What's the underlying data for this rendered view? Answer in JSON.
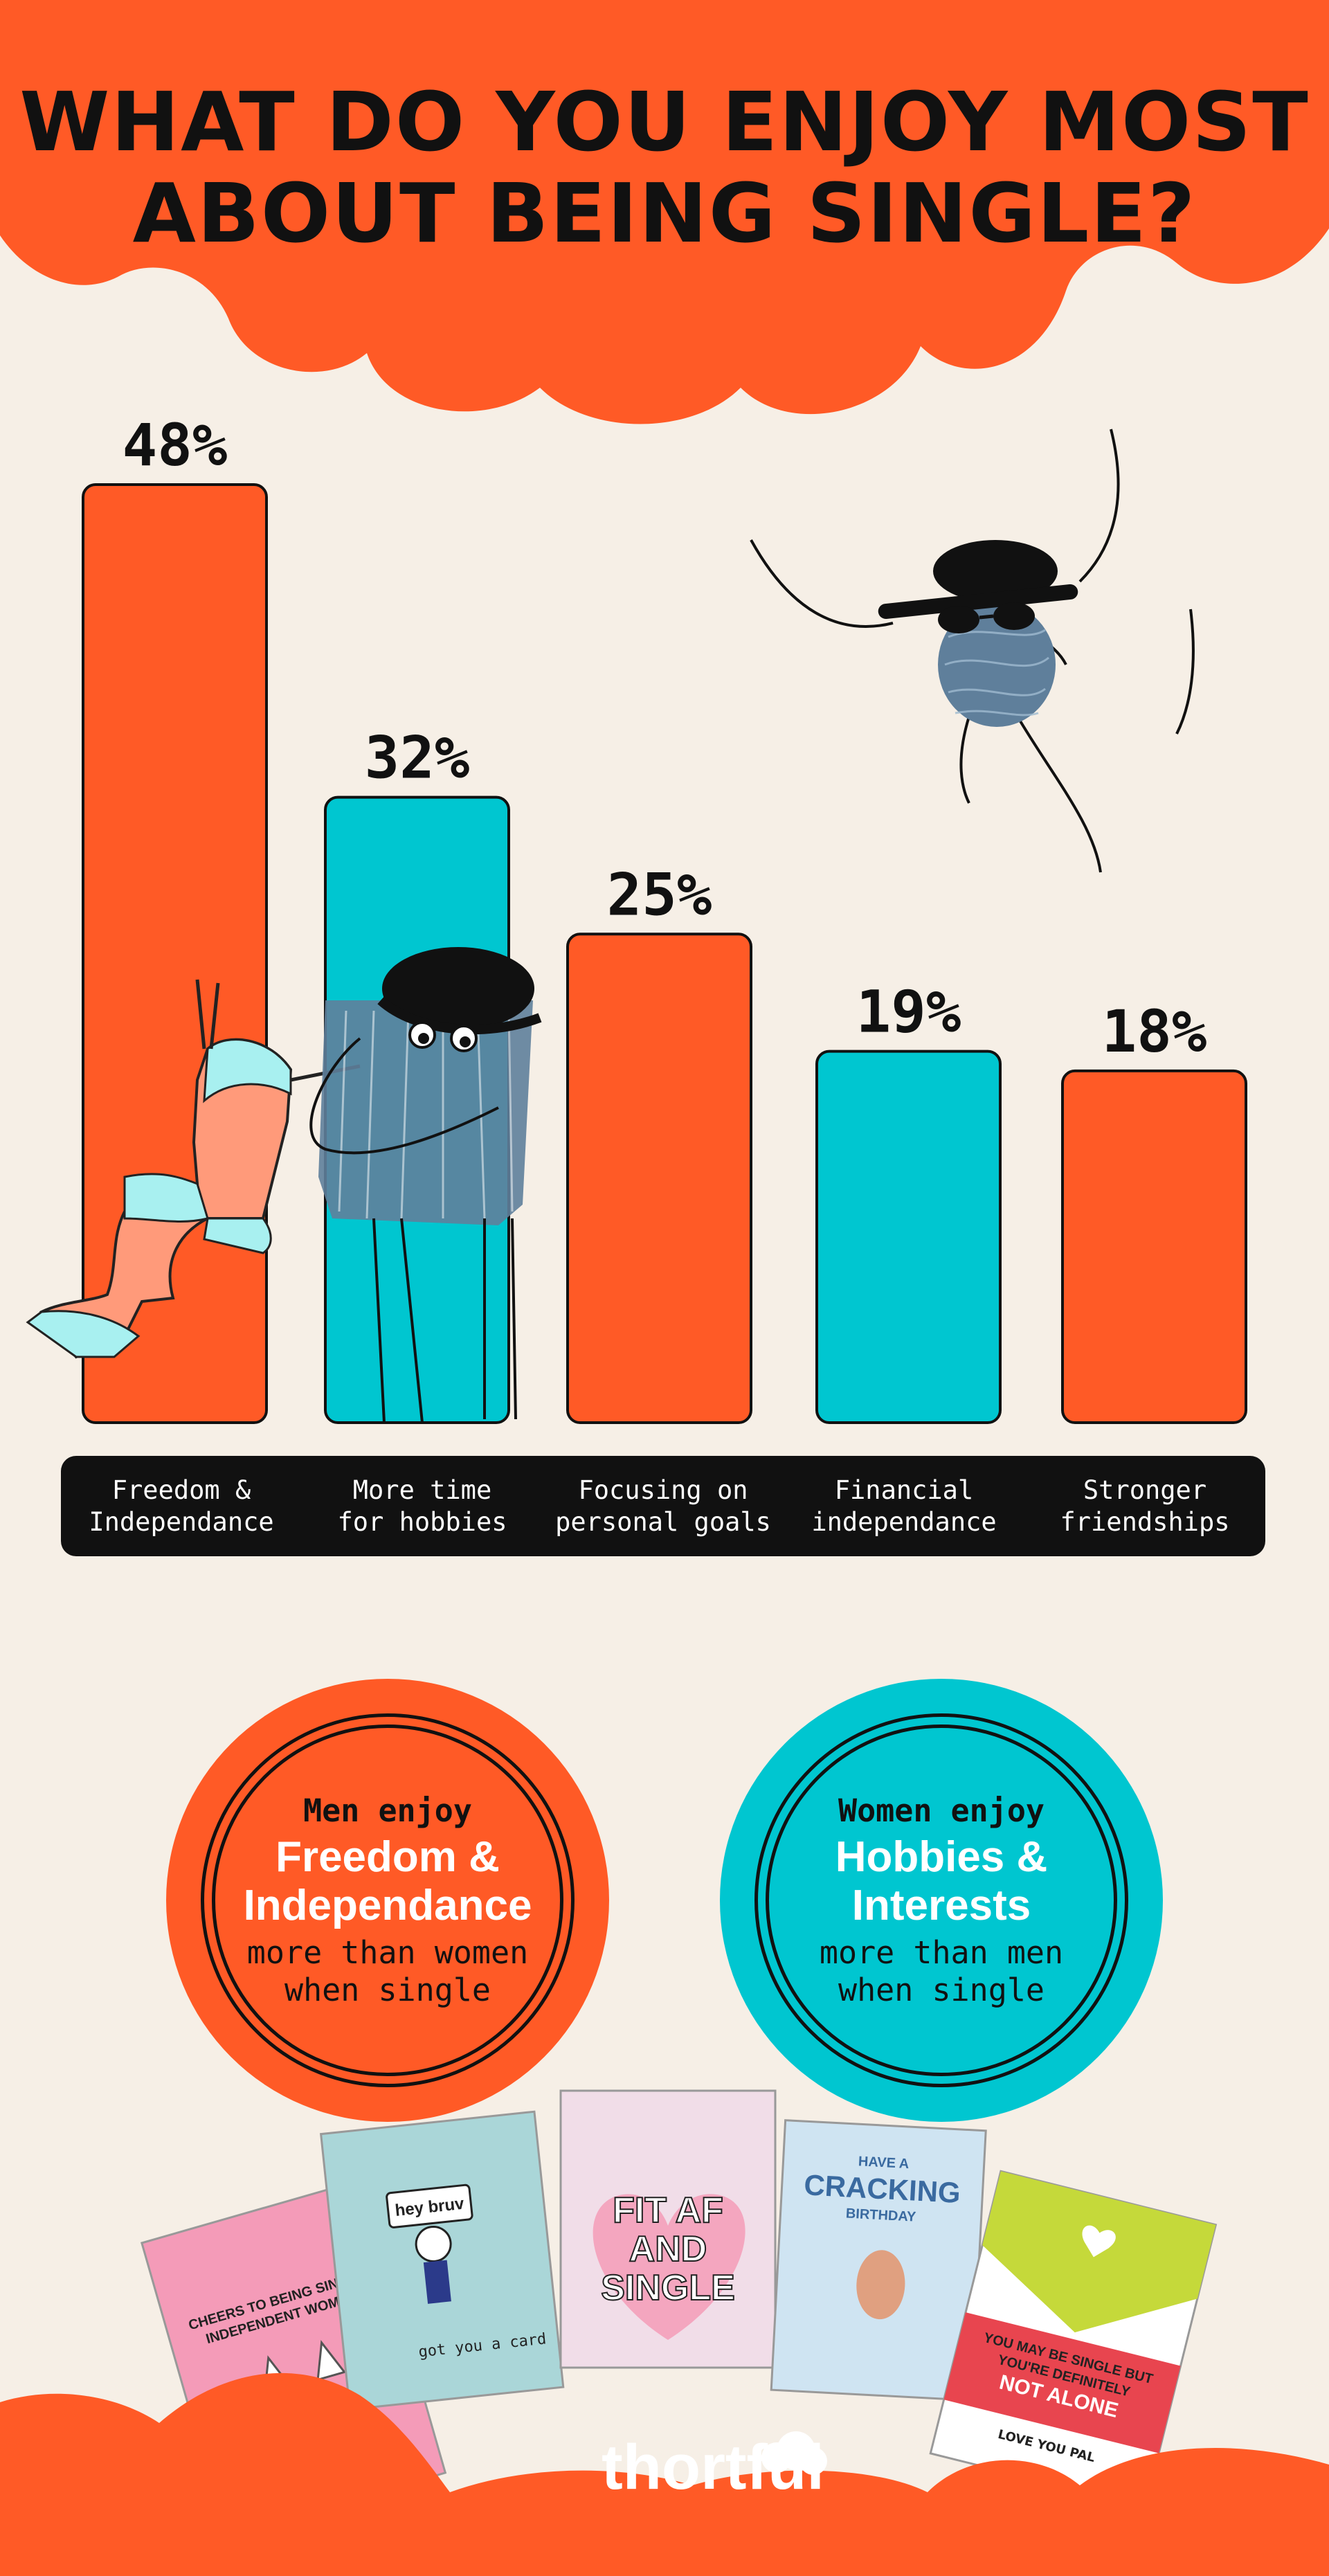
{
  "title": "WHAT DO YOU ENJOY MOST\nABOUT BEING SINGLE?",
  "colors": {
    "orange": "#ff5a26",
    "teal": "#00c6d0",
    "background": "#f6efe6",
    "ink": "#111111"
  },
  "chart_data": {
    "type": "bar",
    "categories": [
      "Freedom &\nIndependance",
      "More time\nfor hobbies",
      "Focusing on\npersonal goals",
      "Financial\nindependance",
      "Stronger\nfriendships"
    ],
    "values": [
      48,
      32,
      25,
      19,
      18
    ],
    "value_labels": [
      "48%",
      "32%",
      "25%",
      "19%",
      "18%"
    ],
    "bar_colors": [
      "#ff5a26",
      "#00c6d0",
      "#ff5a26",
      "#00c6d0",
      "#ff5a26"
    ],
    "ylim": [
      0,
      48
    ],
    "grid": false
  },
  "comparisons": [
    {
      "intro": "Men enjoy",
      "highlight": "Freedom &\nIndependance",
      "rest": "more than women\nwhen single",
      "color": "#ff5a26"
    },
    {
      "intro": "Women enjoy",
      "highlight": "Hobbies &\nInterests",
      "rest": "more than men\nwhen single",
      "color": "#00c6d0"
    }
  ],
  "cards": [
    {
      "text": "CHEERS TO BEING SINGLE\nINDEPENDENT WOMEN"
    },
    {
      "text": "hey bruv",
      "footer": "got you a card"
    },
    {
      "text": "FIT AF\nAND\nSINGLE"
    },
    {
      "text": "HAVE A\nCRACKING\nBIRTHDAY"
    },
    {
      "text": "YOU MAY BE SINGLE BUT\nYOU'RE DEFINITELY\nNOT ALONE",
      "footer": "LOVE YOU PAL"
    }
  ],
  "brand": "thortful"
}
